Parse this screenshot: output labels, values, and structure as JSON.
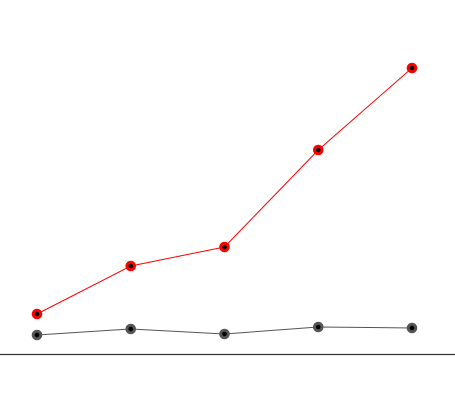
{
  "chart_data": {
    "type": "line",
    "categories": [
      null,
      null,
      null,
      null,
      null
    ],
    "series": [
      {
        "color": "#ff0000",
        "values": [
          40,
          88,
          107,
          204,
          286
        ]
      },
      {
        "color": "#555555",
        "values": [
          19,
          25,
          20,
          27,
          26
        ]
      }
    ],
    "ylim": [
      0,
      300
    ]
  }
}
